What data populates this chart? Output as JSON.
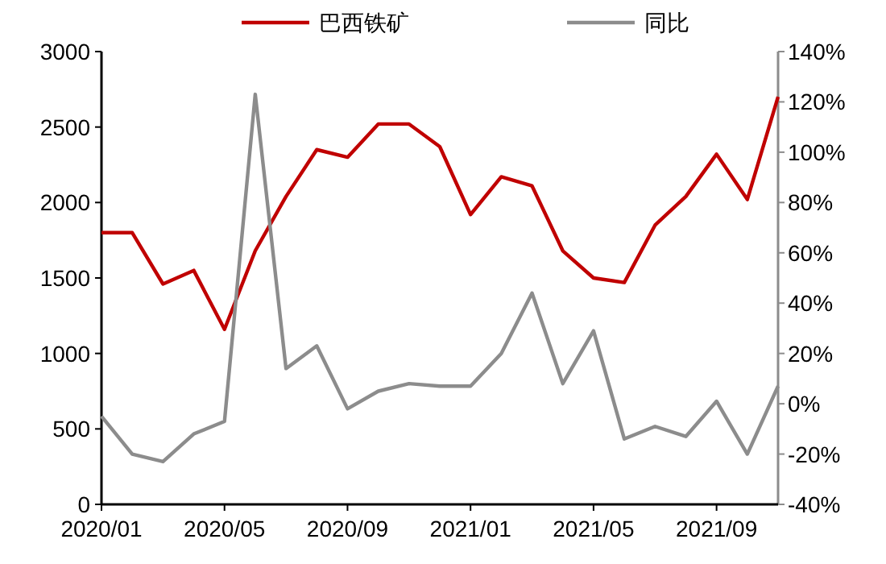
{
  "chart_data": {
    "type": "line",
    "legend": "top",
    "grid": false,
    "marker": "none",
    "line_style": "solid",
    "x": [
      "2020-01",
      "2020-02",
      "2020-03",
      "2020-04",
      "2020-05",
      "2020-06",
      "2020-07",
      "2020-08",
      "2020-09",
      "2020-10",
      "2020-11",
      "2020-12",
      "2021-01",
      "2021-02",
      "2021-03",
      "2021-04",
      "2021-05",
      "2021-06",
      "2021-07",
      "2021-08",
      "2021-09",
      "2021-10",
      "2021-11"
    ],
    "xlim": [
      "2020-01",
      "2021-11"
    ],
    "xticks": [
      {
        "value": "2020-01",
        "label": "2020/01"
      },
      {
        "value": "2020-05",
        "label": "2020/05"
      },
      {
        "value": "2020-09",
        "label": "2020/09"
      },
      {
        "value": "2021-01",
        "label": "2021/01"
      },
      {
        "value": "2021-05",
        "label": "2021/05"
      },
      {
        "value": "2021-09",
        "label": "2021/09"
      }
    ],
    "ylim": [
      0,
      3000
    ],
    "yticks": [
      0,
      500,
      1000,
      1500,
      2000,
      2500,
      3000
    ],
    "y2lim": [
      -40,
      140
    ],
    "y2ticks": [
      {
        "value": -40,
        "label": "-40%"
      },
      {
        "value": -20,
        "label": "-20%"
      },
      {
        "value": 0,
        "label": "0%"
      },
      {
        "value": 20,
        "label": "20%"
      },
      {
        "value": 40,
        "label": "40%"
      },
      {
        "value": 60,
        "label": "60%"
      },
      {
        "value": 80,
        "label": "80%"
      },
      {
        "value": 100,
        "label": "100%"
      },
      {
        "value": 120,
        "label": "120%"
      },
      {
        "value": 140,
        "label": "140%"
      }
    ],
    "series": [
      {
        "name": "巴西铁矿",
        "color": "#c00000",
        "values": [
          1800,
          1800,
          1460,
          1550,
          1160,
          1680,
          2040,
          2350,
          2300,
          2520,
          2520,
          2370,
          1920,
          2170,
          2110,
          1680,
          1500,
          1470,
          1850,
          2040,
          2320,
          2020,
          2700
        ]
      },
      {
        "name": "同比",
        "color": "#8c8c8c",
        "axis": "y2",
        "values": [
          -5,
          -20,
          -23,
          -12,
          -7,
          123,
          14,
          23,
          -2,
          5,
          8,
          7,
          7,
          20,
          44,
          8,
          29,
          -14,
          -9,
          -13,
          1,
          -20,
          7
        ]
      }
    ]
  }
}
